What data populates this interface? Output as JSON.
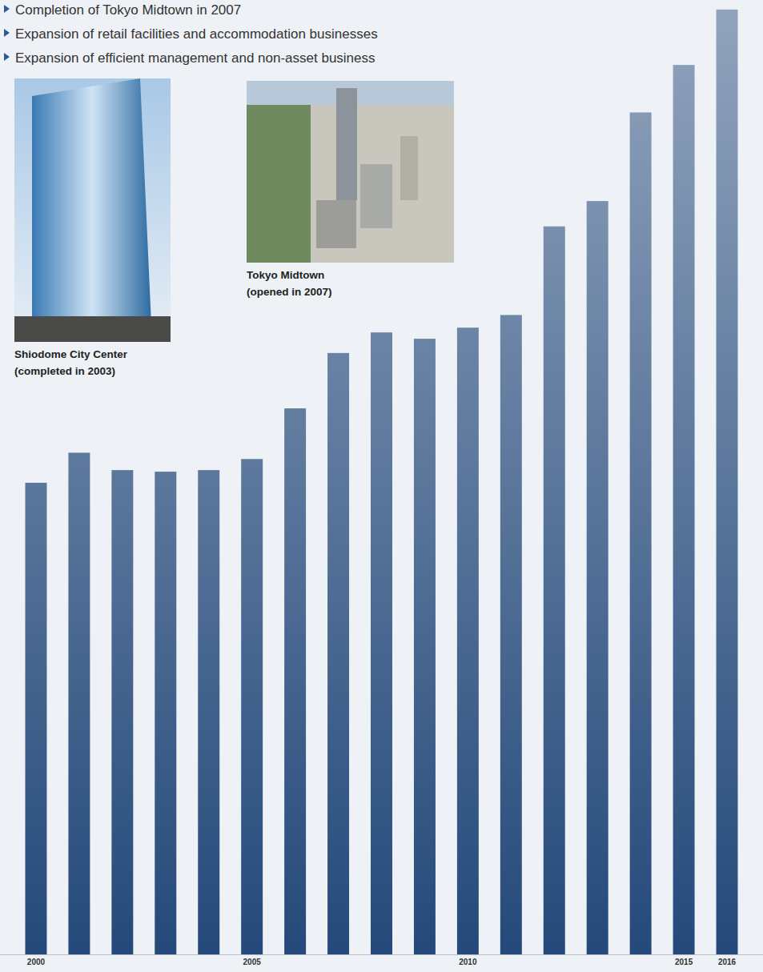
{
  "chart_data": {
    "type": "bar",
    "bullets": [
      "Completion of Tokyo Midtown in 2007",
      "Expansion of retail facilities and accommodation businesses",
      "Expansion of efficient management and non-asset business"
    ],
    "images": [
      {
        "caption": [
          "Shiodome City Center",
          "(completed in 2003)"
        ]
      },
      {
        "caption": [
          "Tokyo Midtown",
          "(opened in 2007)"
        ]
      }
    ],
    "categories": [
      "2000",
      null,
      null,
      null,
      null,
      "2005",
      null,
      null,
      null,
      null,
      "2010",
      null,
      null,
      null,
      null,
      "2015",
      "2016"
    ],
    "values": [
      298,
      317,
      306,
      305,
      306,
      313,
      345,
      380,
      393,
      389,
      396,
      404,
      460,
      476,
      532,
      562,
      597
    ],
    "color": "#24497a",
    "ylim": [
      0,
      600
    ],
    "tick_labels": "x",
    "grid": false
  }
}
